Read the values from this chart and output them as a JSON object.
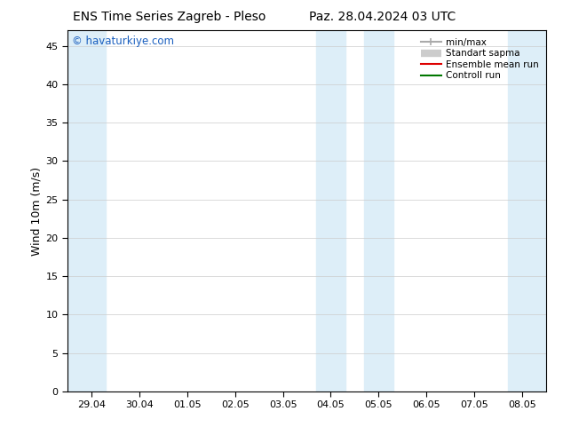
{
  "title_left": "ENS Time Series Zagreb - Pleso",
  "title_right": "Paz. 28.04.2024 03 UTC",
  "ylabel": "Wind 10m (m/s)",
  "ylim": [
    0,
    47
  ],
  "yticks": [
    0,
    5,
    10,
    15,
    20,
    25,
    30,
    35,
    40,
    45
  ],
  "xtick_labels": [
    "29.04",
    "30.04",
    "01.05",
    "02.05",
    "03.05",
    "04.05",
    "05.05",
    "06.05",
    "07.05",
    "08.05"
  ],
  "xtick_positions": [
    0,
    1,
    2,
    3,
    4,
    5,
    6,
    7,
    8,
    9
  ],
  "xlim": [
    -0.5,
    9.5
  ],
  "shaded_bands": [
    {
      "start": -0.5,
      "end": 0.3
    },
    {
      "start": 4.7,
      "end": 5.3
    },
    {
      "start": 5.7,
      "end": 6.3
    },
    {
      "start": 8.7,
      "end": 9.5
    }
  ],
  "band_color": "#ddeef8",
  "watermark": "© havaturkiye.com",
  "watermark_color": "#1a5fbf",
  "legend_items": [
    {
      "label": "min/max",
      "color": "#aaaaaa",
      "lw": 1.5
    },
    {
      "label": "Standart sapma",
      "color": "#cccccc",
      "lw": 6
    },
    {
      "label": "Ensemble mean run",
      "color": "#dd0000",
      "lw": 1.5
    },
    {
      "label": "Controll run",
      "color": "#007700",
      "lw": 1.5
    }
  ],
  "bg_color": "#ffffff",
  "title_fontsize": 10,
  "tick_fontsize": 8,
  "ylabel_fontsize": 9
}
